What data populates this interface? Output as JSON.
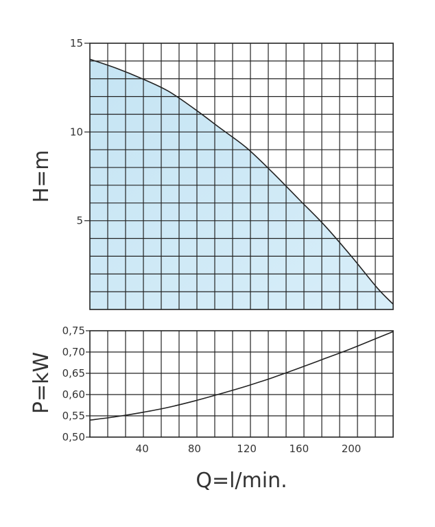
{
  "chart_data": [
    {
      "type": "area",
      "title": "",
      "xlabel": "",
      "ylabel": "H=m",
      "xlim": [
        0,
        232
      ],
      "ylim": [
        0,
        15
      ],
      "yticks": [
        {
          "value": 5,
          "label": "5"
        },
        {
          "value": 10,
          "label": "10"
        },
        {
          "value": 15,
          "label": "15"
        }
      ],
      "grid": true,
      "fill_color": "#bfe3f4",
      "series": [
        {
          "x": [
            0,
            20,
            40,
            60,
            80,
            100,
            120,
            140,
            160,
            180,
            200,
            220,
            232
          ],
          "y": [
            14.1,
            13.6,
            13.0,
            12.3,
            11.3,
            10.2,
            9.1,
            7.7,
            6.2,
            4.7,
            3.0,
            1.2,
            0.3
          ]
        }
      ]
    },
    {
      "type": "line",
      "title": "",
      "xlabel": "Q=l/min.",
      "ylabel": "P=kW",
      "xlim": [
        0,
        232
      ],
      "ylim": [
        0.5,
        0.75
      ],
      "xticks": [
        {
          "value": 40,
          "label": "40"
        },
        {
          "value": 80,
          "label": "80"
        },
        {
          "value": 120,
          "label": "120"
        },
        {
          "value": 160,
          "label": "160"
        },
        {
          "value": 200,
          "label": "200"
        }
      ],
      "yticks": [
        {
          "value": 0.5,
          "label": "0,50"
        },
        {
          "value": 0.55,
          "label": "0,55"
        },
        {
          "value": 0.6,
          "label": "0,60"
        },
        {
          "value": 0.65,
          "label": "0,65"
        },
        {
          "value": 0.7,
          "label": "0,70"
        },
        {
          "value": 0.75,
          "label": "0,75"
        }
      ],
      "grid": true,
      "series": [
        {
          "x": [
            0,
            20,
            40,
            60,
            80,
            100,
            120,
            140,
            160,
            180,
            200,
            220,
            232
          ],
          "y": [
            0.54,
            0.548,
            0.558,
            0.57,
            0.585,
            0.602,
            0.62,
            0.64,
            0.662,
            0.685,
            0.708,
            0.733,
            0.748
          ]
        }
      ]
    }
  ]
}
